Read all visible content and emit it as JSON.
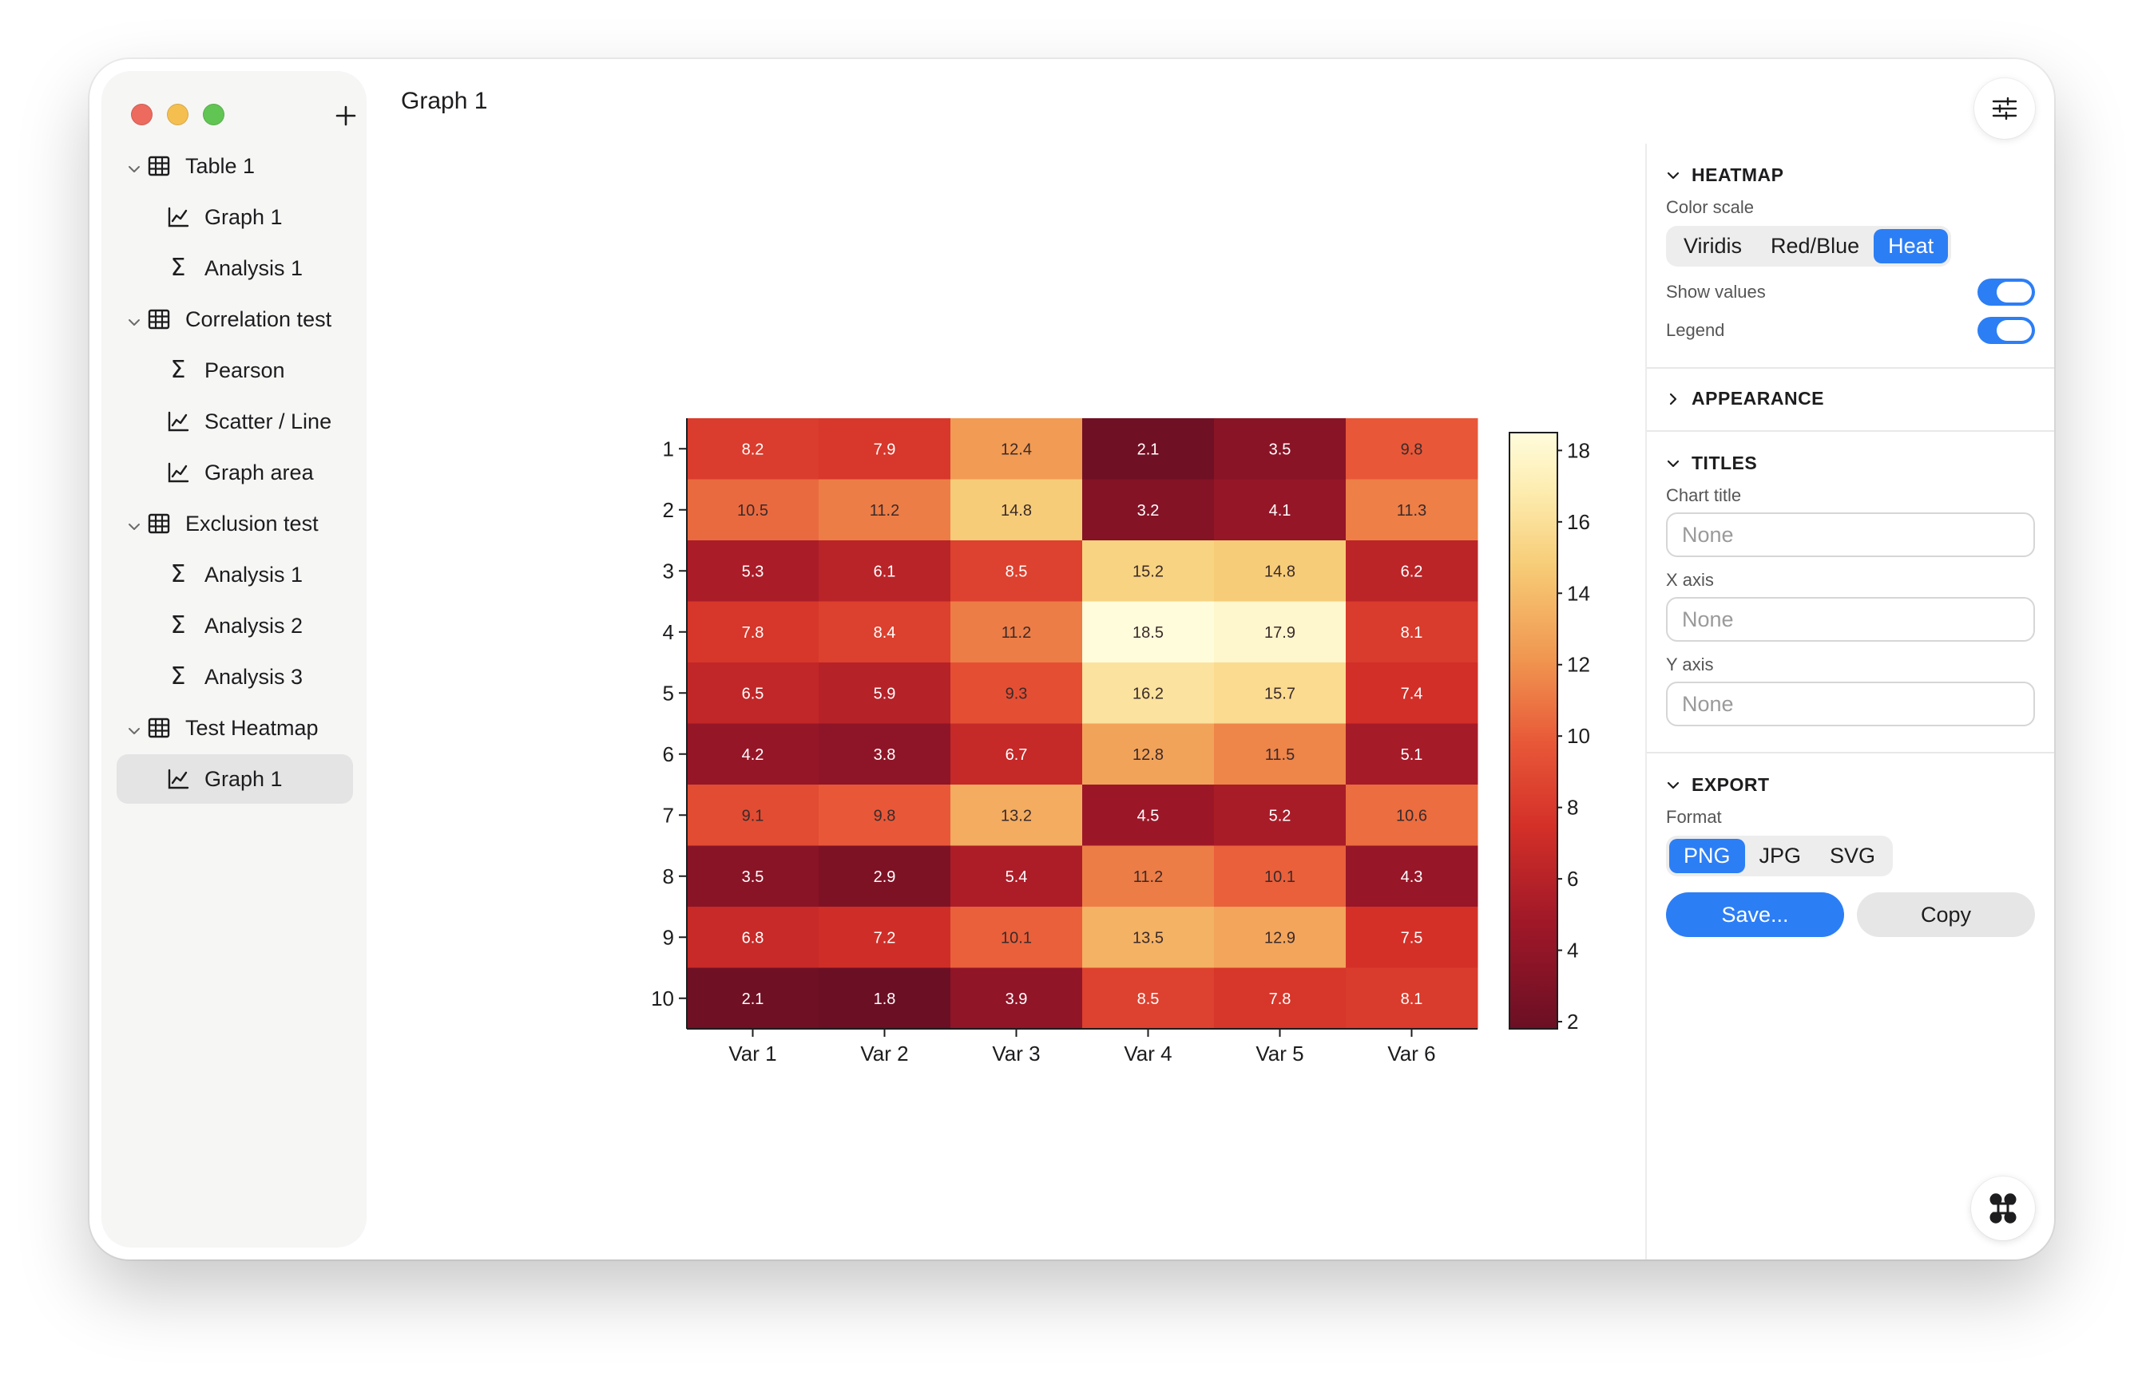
{
  "window": {
    "title": "Graph 1"
  },
  "sidebar": {
    "items": [
      {
        "label": "Table 1",
        "type": "table",
        "level": 0
      },
      {
        "label": "Graph 1",
        "type": "graph",
        "level": 1
      },
      {
        "label": "Analysis 1",
        "type": "analysis",
        "level": 1
      },
      {
        "label": "Correlation test",
        "type": "table",
        "level": 0
      },
      {
        "label": "Pearson",
        "type": "analysis",
        "level": 1
      },
      {
        "label": "Scatter / Line",
        "type": "graph",
        "level": 1
      },
      {
        "label": "Graph area",
        "type": "graph",
        "level": 1
      },
      {
        "label": "Exclusion test",
        "type": "table",
        "level": 0
      },
      {
        "label": "Analysis 1",
        "type": "analysis",
        "level": 1
      },
      {
        "label": "Analysis 2",
        "type": "analysis",
        "level": 1
      },
      {
        "label": "Analysis 3",
        "type": "analysis",
        "level": 1
      },
      {
        "label": "Test Heatmap",
        "type": "table",
        "level": 0
      },
      {
        "label": "Graph 1",
        "type": "graph",
        "level": 1,
        "selected": true
      }
    ]
  },
  "panel": {
    "heatmap": {
      "title": "HEATMAP",
      "color_scale_label": "Color scale",
      "color_scale_options": [
        "Viridis",
        "Red/Blue",
        "Heat"
      ],
      "color_scale_selected": "Heat",
      "show_values_label": "Show values",
      "show_values": true,
      "legend_label": "Legend",
      "legend": true
    },
    "appearance": {
      "title": "APPEARANCE"
    },
    "titles": {
      "title": "TITLES",
      "chart_title_label": "Chart title",
      "chart_title_placeholder": "None",
      "x_axis_label": "X axis",
      "x_axis_placeholder": "None",
      "y_axis_label": "Y axis",
      "y_axis_placeholder": "None"
    },
    "export": {
      "title": "EXPORT",
      "format_label": "Format",
      "format_options": [
        "PNG",
        "JPG",
        "SVG"
      ],
      "format_selected": "PNG",
      "save_label": "Save...",
      "copy_label": "Copy"
    }
  },
  "icons": {
    "add": "plus-icon",
    "settings": "sliders-icon",
    "fab": "command-icon"
  },
  "colors": {
    "accent": "#2c7ef5",
    "heat_low": "#6b0f24",
    "heat_mid": "#e4472f",
    "heat_high": "#fffad8"
  },
  "chart_data": {
    "type": "heatmap",
    "columns": [
      "Var 1",
      "Var 2",
      "Var 3",
      "Var 4",
      "Var 5",
      "Var 6"
    ],
    "rows": [
      "1",
      "2",
      "3",
      "4",
      "5",
      "6",
      "7",
      "8",
      "9",
      "10"
    ],
    "values": [
      [
        8.2,
        7.9,
        12.4,
        2.1,
        3.5,
        9.8
      ],
      [
        10.5,
        11.2,
        14.8,
        3.2,
        4.1,
        11.3
      ],
      [
        5.3,
        6.1,
        8.5,
        15.2,
        14.8,
        6.2
      ],
      [
        7.8,
        8.4,
        11.2,
        18.5,
        17.9,
        8.1
      ],
      [
        6.5,
        5.9,
        9.3,
        16.2,
        15.7,
        7.4
      ],
      [
        4.2,
        3.8,
        6.7,
        12.8,
        11.5,
        5.1
      ],
      [
        9.1,
        9.8,
        13.2,
        4.5,
        5.2,
        10.6
      ],
      [
        3.5,
        2.9,
        5.4,
        11.2,
        10.1,
        4.3
      ],
      [
        6.8,
        7.2,
        10.1,
        13.5,
        12.9,
        7.5
      ],
      [
        2.1,
        1.8,
        3.9,
        8.5,
        7.8,
        8.1
      ]
    ],
    "colorbar": {
      "min": 1.8,
      "max": 18.5,
      "ticks": [
        2,
        4,
        6,
        8,
        10,
        12,
        14,
        16,
        18
      ]
    },
    "show_values": true,
    "legend": true,
    "title": "",
    "xlabel": "",
    "ylabel": ""
  }
}
